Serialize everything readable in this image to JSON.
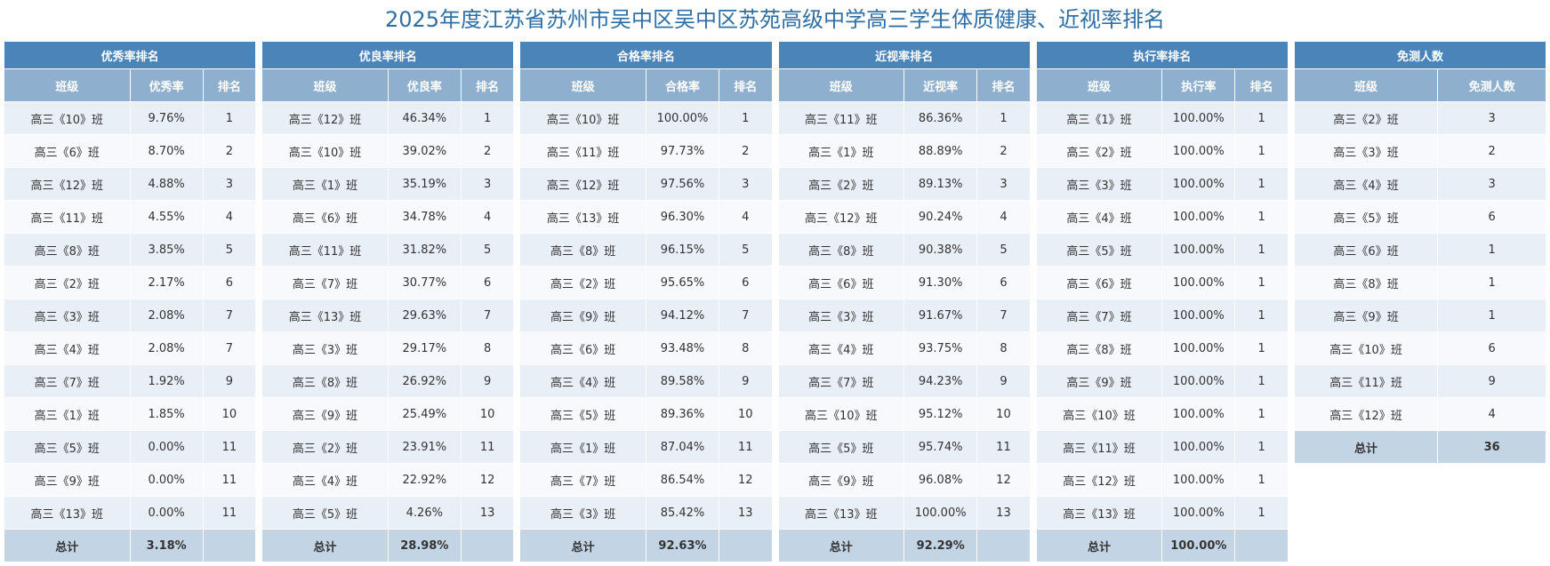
{
  "page": {
    "title": "2025年度江苏省苏州市吴中区吴中区苏苑高级中学高三学生体质健康、近视率排名"
  },
  "tables": [
    {
      "title": "优秀率排名",
      "columns": [
        "班级",
        "优秀率",
        "排名"
      ],
      "rows": [
        [
          "高三《10》班",
          "9.76%",
          "1"
        ],
        [
          "高三《6》班",
          "8.70%",
          "2"
        ],
        [
          "高三《12》班",
          "4.88%",
          "3"
        ],
        [
          "高三《11》班",
          "4.55%",
          "4"
        ],
        [
          "高三《8》班",
          "3.85%",
          "5"
        ],
        [
          "高三《2》班",
          "2.17%",
          "6"
        ],
        [
          "高三《3》班",
          "2.08%",
          "7"
        ],
        [
          "高三《4》班",
          "2.08%",
          "7"
        ],
        [
          "高三《7》班",
          "1.92%",
          "9"
        ],
        [
          "高三《1》班",
          "1.85%",
          "10"
        ],
        [
          "高三《5》班",
          "0.00%",
          "11"
        ],
        [
          "高三《9》班",
          "0.00%",
          "11"
        ],
        [
          "高三《13》班",
          "0.00%",
          "11"
        ]
      ],
      "total": [
        "总计",
        "3.18%",
        ""
      ]
    },
    {
      "title": "优良率排名",
      "columns": [
        "班级",
        "优良率",
        "排名"
      ],
      "rows": [
        [
          "高三《12》班",
          "46.34%",
          "1"
        ],
        [
          "高三《10》班",
          "39.02%",
          "2"
        ],
        [
          "高三《1》班",
          "35.19%",
          "3"
        ],
        [
          "高三《6》班",
          "34.78%",
          "4"
        ],
        [
          "高三《11》班",
          "31.82%",
          "5"
        ],
        [
          "高三《7》班",
          "30.77%",
          "6"
        ],
        [
          "高三《13》班",
          "29.63%",
          "7"
        ],
        [
          "高三《3》班",
          "29.17%",
          "8"
        ],
        [
          "高三《8》班",
          "26.92%",
          "9"
        ],
        [
          "高三《9》班",
          "25.49%",
          "10"
        ],
        [
          "高三《2》班",
          "23.91%",
          "11"
        ],
        [
          "高三《4》班",
          "22.92%",
          "12"
        ],
        [
          "高三《5》班",
          "4.26%",
          "13"
        ]
      ],
      "total": [
        "总计",
        "28.98%",
        ""
      ]
    },
    {
      "title": "合格率排名",
      "columns": [
        "班级",
        "合格率",
        "排名"
      ],
      "rows": [
        [
          "高三《10》班",
          "100.00%",
          "1"
        ],
        [
          "高三《11》班",
          "97.73%",
          "2"
        ],
        [
          "高三《12》班",
          "97.56%",
          "3"
        ],
        [
          "高三《13》班",
          "96.30%",
          "4"
        ],
        [
          "高三《8》班",
          "96.15%",
          "5"
        ],
        [
          "高三《2》班",
          "95.65%",
          "6"
        ],
        [
          "高三《9》班",
          "94.12%",
          "7"
        ],
        [
          "高三《6》班",
          "93.48%",
          "8"
        ],
        [
          "高三《4》班",
          "89.58%",
          "9"
        ],
        [
          "高三《5》班",
          "89.36%",
          "10"
        ],
        [
          "高三《1》班",
          "87.04%",
          "11"
        ],
        [
          "高三《7》班",
          "86.54%",
          "12"
        ],
        [
          "高三《3》班",
          "85.42%",
          "13"
        ]
      ],
      "total": [
        "总计",
        "92.63%",
        ""
      ]
    },
    {
      "title": "近视率排名",
      "columns": [
        "班级",
        "近视率",
        "排名"
      ],
      "rows": [
        [
          "高三《11》班",
          "86.36%",
          "1"
        ],
        [
          "高三《1》班",
          "88.89%",
          "2"
        ],
        [
          "高三《2》班",
          "89.13%",
          "3"
        ],
        [
          "高三《12》班",
          "90.24%",
          "4"
        ],
        [
          "高三《8》班",
          "90.38%",
          "5"
        ],
        [
          "高三《6》班",
          "91.30%",
          "6"
        ],
        [
          "高三《3》班",
          "91.67%",
          "7"
        ],
        [
          "高三《4》班",
          "93.75%",
          "8"
        ],
        [
          "高三《7》班",
          "94.23%",
          "9"
        ],
        [
          "高三《10》班",
          "95.12%",
          "10"
        ],
        [
          "高三《5》班",
          "95.74%",
          "11"
        ],
        [
          "高三《9》班",
          "96.08%",
          "12"
        ],
        [
          "高三《13》班",
          "100.00%",
          "13"
        ]
      ],
      "total": [
        "总计",
        "92.29%",
        ""
      ]
    },
    {
      "title": "执行率排名",
      "columns": [
        "班级",
        "执行率",
        "排名"
      ],
      "rows": [
        [
          "高三《1》班",
          "100.00%",
          "1"
        ],
        [
          "高三《2》班",
          "100.00%",
          "1"
        ],
        [
          "高三《3》班",
          "100.00%",
          "1"
        ],
        [
          "高三《4》班",
          "100.00%",
          "1"
        ],
        [
          "高三《5》班",
          "100.00%",
          "1"
        ],
        [
          "高三《6》班",
          "100.00%",
          "1"
        ],
        [
          "高三《7》班",
          "100.00%",
          "1"
        ],
        [
          "高三《8》班",
          "100.00%",
          "1"
        ],
        [
          "高三《9》班",
          "100.00%",
          "1"
        ],
        [
          "高三《10》班",
          "100.00%",
          "1"
        ],
        [
          "高三《11》班",
          "100.00%",
          "1"
        ],
        [
          "高三《12》班",
          "100.00%",
          "1"
        ],
        [
          "高三《13》班",
          "100.00%",
          "1"
        ]
      ],
      "total": [
        "总计",
        "100.00%",
        ""
      ]
    },
    {
      "title": "免测人数",
      "columns": [
        "班级",
        "免测人数"
      ],
      "rows": [
        [
          "高三《2》班",
          "3"
        ],
        [
          "高三《3》班",
          "2"
        ],
        [
          "高三《4》班",
          "3"
        ],
        [
          "高三《5》班",
          "6"
        ],
        [
          "高三《6》班",
          "1"
        ],
        [
          "高三《8》班",
          "1"
        ],
        [
          "高三《9》班",
          "1"
        ],
        [
          "高三《10》班",
          "6"
        ],
        [
          "高三《11》班",
          "9"
        ],
        [
          "高三《12》班",
          "4"
        ]
      ],
      "total": [
        "总计",
        "36"
      ]
    }
  ]
}
